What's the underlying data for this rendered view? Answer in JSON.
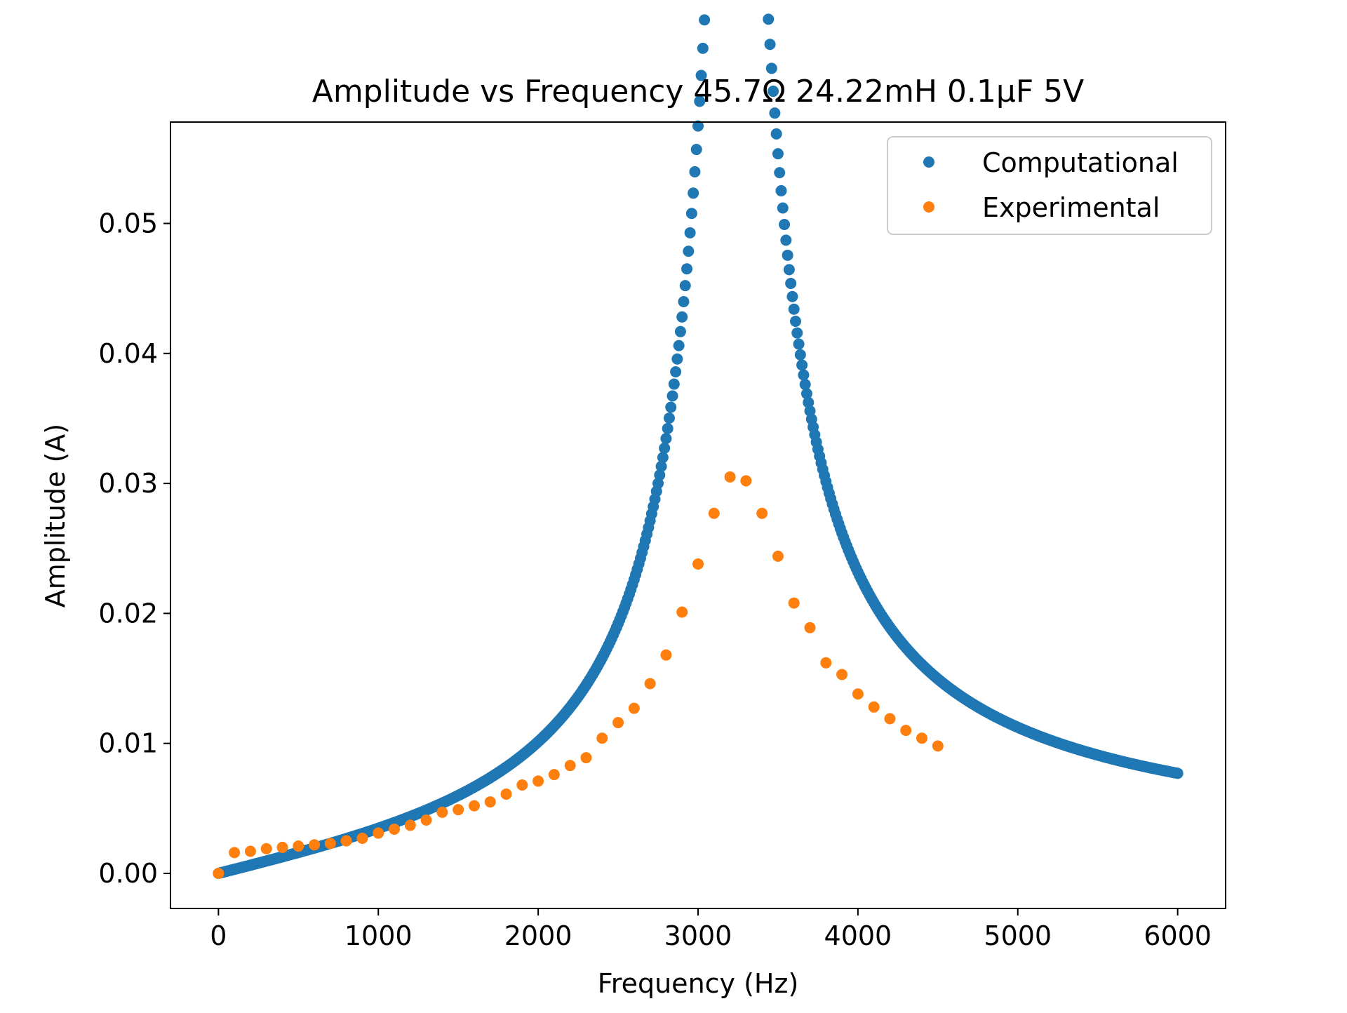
{
  "chart_data": {
    "type": "scatter",
    "title": "Amplitude vs Frequency 45.7Ω 24.22mH 0.1μF 5V",
    "xlabel": "Frequency (Hz)",
    "ylabel": "Amplitude (A)",
    "xlim": [
      -300,
      6300
    ],
    "ylim": [
      -0.0027,
      0.0578
    ],
    "xticks": [
      0,
      1000,
      2000,
      3000,
      4000,
      5000,
      6000
    ],
    "xtick_labels": [
      "0",
      "1000",
      "2000",
      "3000",
      "4000",
      "5000",
      "6000"
    ],
    "yticks": [
      0.0,
      0.01,
      0.02,
      0.03,
      0.04,
      0.05
    ],
    "ytick_labels": [
      "0.00",
      "0.01",
      "0.02",
      "0.03",
      "0.04",
      "0.05"
    ],
    "grid": false,
    "legend_position": "top-right",
    "series": [
      {
        "name": "Computational",
        "color": "#1f77b4",
        "model": "series RLC current amplitude",
        "V": 5,
        "R": 45.7,
        "L": 0.02422,
        "C": 1e-07,
        "x_start": 0,
        "x_end": 6000,
        "x_step": 10
      },
      {
        "name": "Experimental",
        "color": "#ff7f0e",
        "x": [
          0,
          100,
          200,
          300,
          400,
          500,
          600,
          700,
          800,
          900,
          1000,
          1100,
          1200,
          1300,
          1400,
          1500,
          1600,
          1700,
          1800,
          1900,
          2000,
          2100,
          2200,
          2300,
          2400,
          2500,
          2600,
          2700,
          2800,
          2900,
          3000,
          3100,
          3200,
          3300,
          3400,
          3500,
          3600,
          3700,
          3800,
          3900,
          4000,
          4100,
          4200,
          4300,
          4400,
          4500
        ],
        "y": [
          0.0,
          0.0016,
          0.0017,
          0.0019,
          0.002,
          0.0021,
          0.0022,
          0.0023,
          0.0025,
          0.0027,
          0.0031,
          0.0034,
          0.0037,
          0.0041,
          0.0047,
          0.0049,
          0.0052,
          0.0055,
          0.0061,
          0.0068,
          0.0071,
          0.0076,
          0.0083,
          0.0089,
          0.0104,
          0.0116,
          0.0127,
          0.0146,
          0.0168,
          0.0201,
          0.0238,
          0.0277,
          0.0305,
          0.0302,
          0.0277,
          0.0244,
          0.0208,
          0.0189,
          0.0162,
          0.0153,
          0.0138,
          0.0128,
          0.0119,
          0.011,
          0.0104,
          0.0098
        ]
      }
    ]
  }
}
